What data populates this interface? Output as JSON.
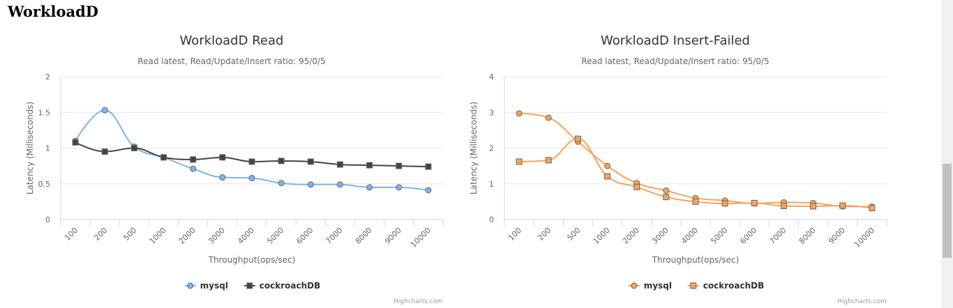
{
  "page": {
    "heading": "WorkloadD"
  },
  "credits": "Highcharts.com",
  "chart_data": [
    {
      "type": "line",
      "title": "WorkloadD Read",
      "subtitle": "Read latest, Read/Update/Insert ratio: 95/0/5",
      "xlabel": "Throughput(ops/sec)",
      "ylabel": "Latency (Milliseconds)",
      "categories": [
        "100",
        "200",
        "500",
        "1000",
        "2000",
        "3000",
        "4000",
        "5000",
        "6000",
        "7000",
        "8000",
        "9000",
        "10000"
      ],
      "ylim": [
        0,
        2
      ],
      "yticks": [
        "0",
        "0.5",
        "1",
        "1.5",
        "2"
      ],
      "grid": true,
      "legend_position": "bottom-center",
      "series": [
        {
          "name": "mysql",
          "marker": "circle",
          "color": "#7cb5ec",
          "values": [
            1.1,
            1.53,
            1.02,
            0.87,
            0.71,
            0.59,
            0.58,
            0.51,
            0.49,
            0.49,
            0.45,
            0.45,
            0.41
          ]
        },
        {
          "name": "cockroachDB",
          "marker": "square",
          "color": "#434348",
          "values": [
            1.08,
            0.95,
            1.0,
            0.87,
            0.84,
            0.87,
            0.81,
            0.82,
            0.81,
            0.77,
            0.76,
            0.75,
            0.74
          ]
        }
      ]
    },
    {
      "type": "line",
      "title": "WorkloadD Insert-Failed",
      "subtitle": "Read latest, Read/Update/Insert ratio: 95/0/5",
      "xlabel": "Throughput(ops/sec)",
      "ylabel": "Latency (Milliseconds)",
      "categories": [
        "100",
        "200",
        "500",
        "1000",
        "2000",
        "3000",
        "4000",
        "5000",
        "6000",
        "7000",
        "8000",
        "9000",
        "10000"
      ],
      "ylim": [
        0,
        4
      ],
      "yticks": [
        "0",
        "1",
        "2",
        "3",
        "4"
      ],
      "grid": true,
      "legend_position": "bottom-center",
      "series": [
        {
          "name": "mysql",
          "marker": "circle",
          "color": "#f7a35c",
          "values": [
            2.97,
            2.85,
            2.18,
            1.5,
            1.02,
            0.81,
            0.6,
            0.53,
            0.45,
            0.48,
            0.46,
            0.37,
            0.36
          ]
        },
        {
          "name": "cockroachDB",
          "marker": "square",
          "color": "#f7a35c",
          "values": [
            1.62,
            1.66,
            2.26,
            1.21,
            0.91,
            0.63,
            0.5,
            0.45,
            0.46,
            0.38,
            0.37,
            0.39,
            0.32
          ]
        }
      ]
    }
  ]
}
